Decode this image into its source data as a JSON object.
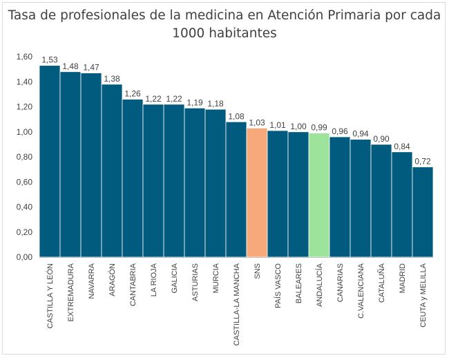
{
  "chart_data": {
    "type": "bar",
    "title_lines": [
      "Tasa de profesionales de la medicina en Atención Primaria por cada",
      "1000 habitantes"
    ],
    "xlabel": "",
    "ylabel": "",
    "ylim": [
      0,
      1.6
    ],
    "yticks": [
      "0,00",
      "0,20",
      "0,40",
      "0,60",
      "0,80",
      "1,00",
      "1,20",
      "1,40",
      "1,60"
    ],
    "grid": false,
    "legend": "none",
    "colors": {
      "default": "#005b7f",
      "SNS": "#f8a97c",
      "ANDALUCÍA": "#9de39b"
    },
    "categories": [
      "CASTILLA Y LEÓN",
      "EXTREMADURA",
      "NAVARRA",
      "ARAGÓN",
      "CANTABRIA",
      "LA RIOJA",
      "GALICIA",
      "ASTURIAS",
      "MURCIA",
      "CASTILLA-LA MANCHA",
      "SNS",
      "PAÍS VASCO",
      "BALEARES",
      "ANDALUCÍA",
      "CANARIAS",
      "C.VALENCIANA",
      "CATALUÑA",
      "MADRID",
      "CEUTA y MELILLA"
    ],
    "values": [
      1.53,
      1.48,
      1.47,
      1.38,
      1.26,
      1.22,
      1.22,
      1.19,
      1.18,
      1.08,
      1.03,
      1.01,
      1.0,
      0.99,
      0.96,
      0.94,
      0.9,
      0.84,
      0.72
    ],
    "data_labels": [
      "1,53",
      "1,48",
      "1,47",
      "1,38",
      "1,26",
      "1,22",
      "1,22",
      "1,19",
      "1,18",
      "1,08",
      "1,03",
      "1,01",
      "1,00",
      "0,99",
      "0,96",
      "0,94",
      "0,90",
      "0,84",
      "0,72"
    ]
  }
}
